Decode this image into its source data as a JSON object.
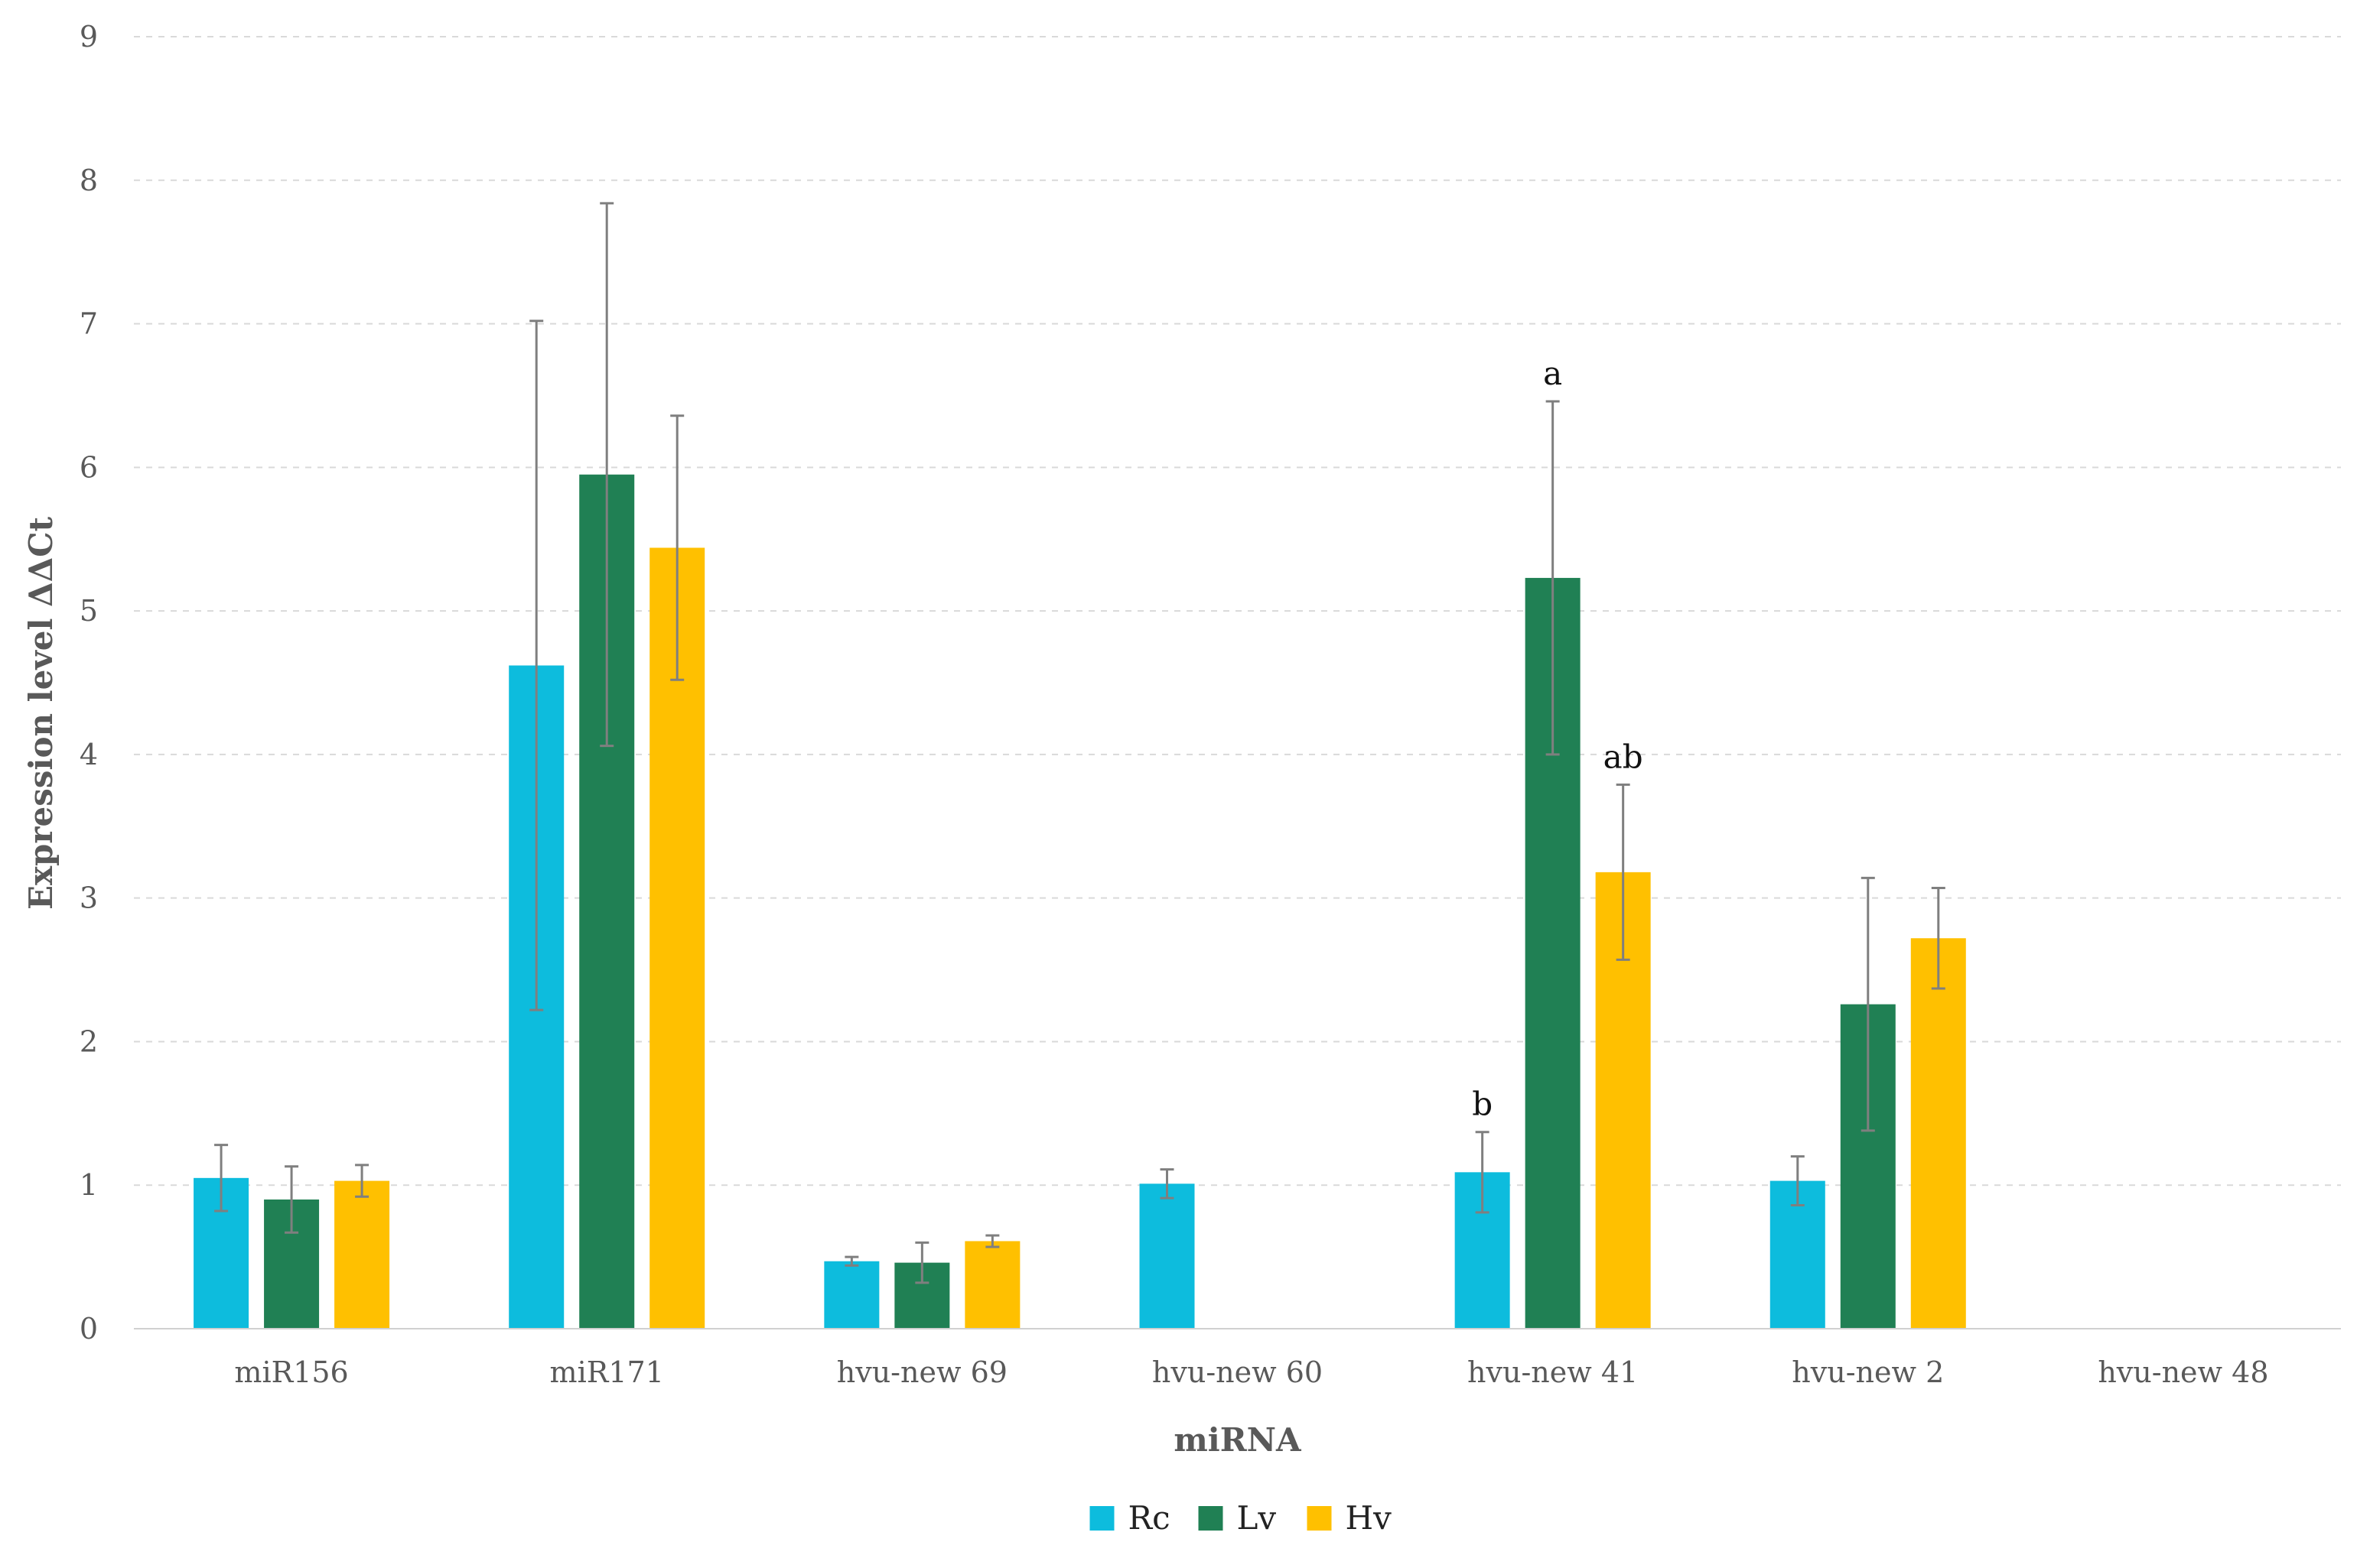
{
  "chart_data": {
    "type": "bar",
    "title": "",
    "xlabel": "miRNA",
    "ylabel": "Expression level ΔΔCt",
    "ylim": [
      0,
      9
    ],
    "yticks": [
      0,
      1,
      2,
      3,
      4,
      5,
      6,
      7,
      8,
      9
    ],
    "grid": true,
    "legend_position": "bottom-center",
    "categories": [
      "miR156",
      "miR171",
      "hvu-new 69",
      "hvu-new 60",
      "hvu-new 41",
      "hvu-new 2",
      "hvu-new 48"
    ],
    "series": [
      {
        "name": "Rc",
        "color": "#0DBCDD",
        "values": [
          1.05,
          4.62,
          0.47,
          1.01,
          1.09,
          1.03,
          null
        ],
        "errors": [
          0.23,
          2.4,
          0.03,
          0.1,
          0.28,
          0.17,
          null
        ]
      },
      {
        "name": "Lv",
        "color": "#208054",
        "values": [
          0.9,
          5.95,
          0.46,
          null,
          5.23,
          2.26,
          null
        ],
        "errors": [
          0.23,
          1.89,
          0.14,
          null,
          1.23,
          0.88,
          null
        ]
      },
      {
        "name": "Hv",
        "color": "#FFC000",
        "values": [
          1.03,
          5.44,
          0.61,
          null,
          3.18,
          2.72,
          null
        ],
        "errors": [
          0.11,
          0.92,
          0.04,
          null,
          0.61,
          0.35,
          null
        ]
      }
    ],
    "annotations": [
      {
        "category": "hvu-new 41",
        "series": "Rc",
        "text": "b"
      },
      {
        "category": "hvu-new 41",
        "series": "Lv",
        "text": "a"
      },
      {
        "category": "hvu-new 41",
        "series": "Hv",
        "text": "ab"
      }
    ]
  }
}
